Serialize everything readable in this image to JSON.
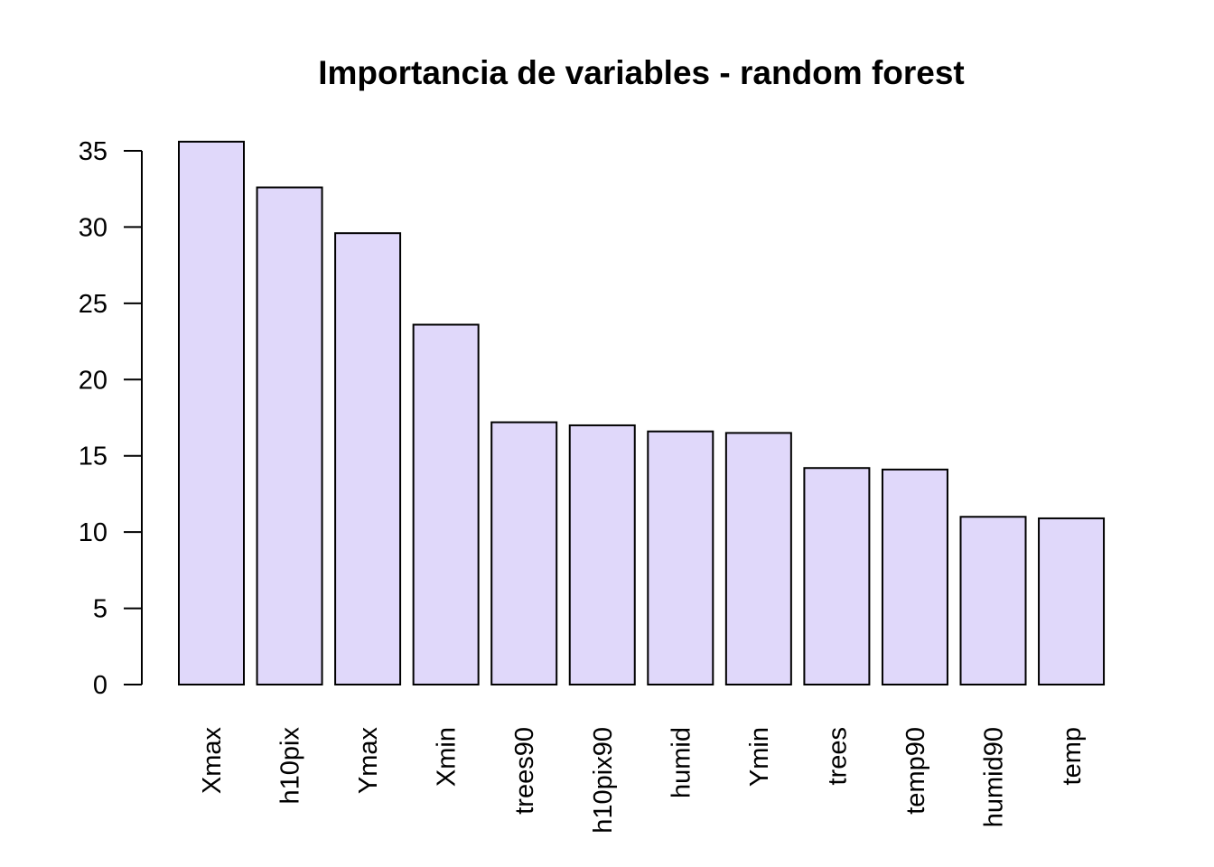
{
  "chart_data": {
    "type": "bar",
    "title": "Importancia de variables - random forest",
    "xlabel": "",
    "ylabel": "",
    "categories": [
      "Xmax",
      "h10pix",
      "Ymax",
      "Xmin",
      "trees90",
      "h10pix90",
      "humid",
      "Ymin",
      "trees",
      "temp90",
      "humid90",
      "temp"
    ],
    "values": [
      35.6,
      32.6,
      29.6,
      23.6,
      17.2,
      17.0,
      16.6,
      16.5,
      14.2,
      14.1,
      11.0,
      10.9
    ],
    "ylim": [
      0,
      35
    ],
    "yticks": [
      0,
      5,
      10,
      15,
      20,
      25,
      30,
      35
    ],
    "bar_color": "#e0d8fa",
    "grid": false,
    "legend": "none"
  }
}
